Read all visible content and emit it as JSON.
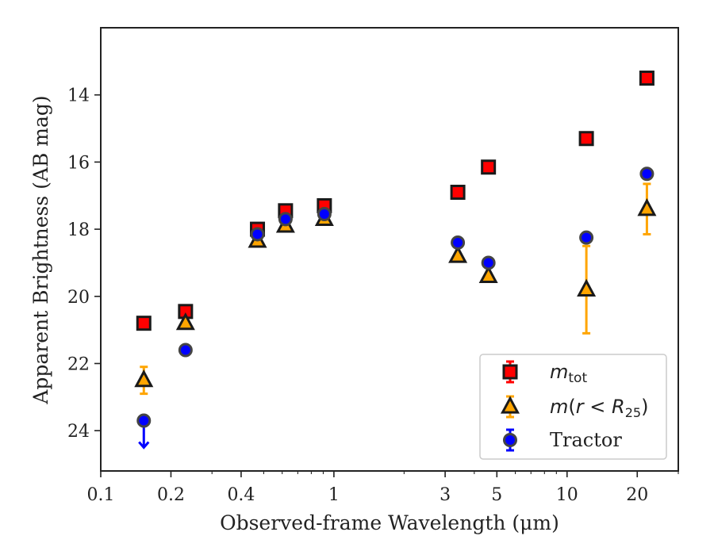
{
  "chart_data": {
    "type": "scatter",
    "xlabel": "Observed-frame Wavelength (μm)",
    "ylabel": "Apparent Brightness (AB mag)",
    "xscale": "log",
    "xlim": [
      0.1,
      30
    ],
    "ylim": [
      25.2,
      12.0
    ],
    "y_inverted": true,
    "x_tick_labels": [
      "0.1",
      "0.2",
      "0.4",
      "1",
      "3",
      "5",
      "10",
      "20"
    ],
    "x_tick_values": [
      0.1,
      0.2,
      0.4,
      1,
      3,
      5,
      10,
      20
    ],
    "y_tick_labels": [
      "14",
      "16",
      "18",
      "20",
      "22",
      "24"
    ],
    "y_tick_values": [
      14,
      16,
      18,
      20,
      22,
      24
    ],
    "grid": false,
    "legend_position": "bottom-right",
    "series": [
      {
        "name": "m_tot",
        "marker": "square",
        "color": "#ff0000",
        "errorbar_color": "#ff0000",
        "points": [
          {
            "x": 0.153,
            "y": 20.8,
            "err": 0.05
          },
          {
            "x": 0.231,
            "y": 20.45,
            "err": 0.05
          },
          {
            "x": 0.47,
            "y": 18.0,
            "err": 0.05
          },
          {
            "x": 0.62,
            "y": 17.45,
            "err": 0.05
          },
          {
            "x": 0.91,
            "y": 17.3,
            "err": 0.05
          },
          {
            "x": 3.4,
            "y": 16.9,
            "err": 0.05
          },
          {
            "x": 4.6,
            "y": 16.15,
            "err": 0.05
          },
          {
            "x": 12.1,
            "y": 15.3,
            "err": 0.05
          },
          {
            "x": 22.0,
            "y": 13.5,
            "err": 0.05
          }
        ]
      },
      {
        "name": "m(r < R25)",
        "marker": "triangle",
        "color": "#ffa500",
        "errorbar_color": "#ffa500",
        "points": [
          {
            "x": 0.153,
            "y": 22.5,
            "err": 0.4
          },
          {
            "x": 0.231,
            "y": 20.8,
            "err": 0.05
          },
          {
            "x": 0.47,
            "y": 18.35,
            "err": 0.05
          },
          {
            "x": 0.62,
            "y": 17.9,
            "err": 0.05
          },
          {
            "x": 0.91,
            "y": 17.7,
            "err": 0.05
          },
          {
            "x": 3.4,
            "y": 18.8,
            "err": 0.05
          },
          {
            "x": 4.6,
            "y": 19.4,
            "err": 0.05
          },
          {
            "x": 12.1,
            "y": 19.8,
            "err": 1.3
          },
          {
            "x": 22.0,
            "y": 17.4,
            "err": 0.75
          }
        ]
      },
      {
        "name": "Tractor",
        "marker": "circle",
        "color": "#0000ff",
        "errorbar_color": "#0000ff",
        "points": [
          {
            "x": 0.153,
            "y": 23.7,
            "err": 0.05,
            "upper_limit": true
          },
          {
            "x": 0.231,
            "y": 21.6,
            "err": 0.05
          },
          {
            "x": 0.47,
            "y": 18.15,
            "err": 0.05
          },
          {
            "x": 0.62,
            "y": 17.7,
            "err": 0.05
          },
          {
            "x": 0.91,
            "y": 17.55,
            "err": 0.05
          },
          {
            "x": 3.4,
            "y": 18.4,
            "err": 0.05
          },
          {
            "x": 4.6,
            "y": 19.0,
            "err": 0.05
          },
          {
            "x": 12.1,
            "y": 18.25,
            "err": 0.05
          },
          {
            "x": 22.0,
            "y": 16.35,
            "err": 0.05
          }
        ]
      }
    ]
  }
}
